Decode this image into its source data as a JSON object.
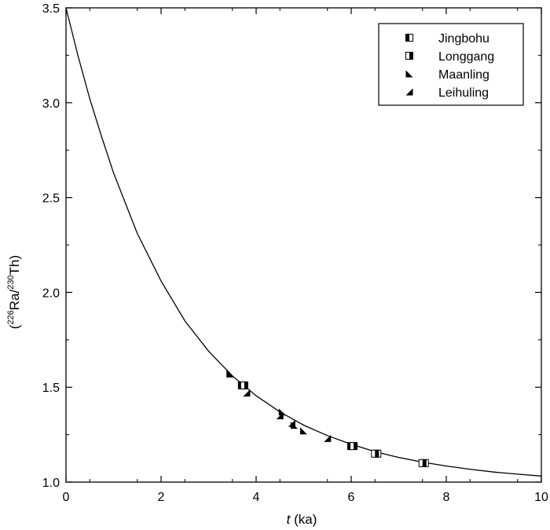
{
  "chart_data": {
    "type": "scatter",
    "xlabel_italic": "t",
    "xlabel_rest": " (ka)",
    "ylabel_parts": {
      "open": "(",
      "sup1": "226",
      "mid": "Ra/",
      "sup2": "230",
      "end": "Th)"
    },
    "xlim": [
      0,
      10
    ],
    "ylim": [
      1.0,
      3.5
    ],
    "xticks": [
      "0",
      "2",
      "4",
      "6",
      "8",
      "10"
    ],
    "xtick_values": [
      0,
      2,
      4,
      6,
      8,
      10
    ],
    "yticks": [
      "1.0",
      "1.5",
      "2.0",
      "2.5",
      "3.0",
      "3.5"
    ],
    "ytick_values": [
      1.0,
      1.5,
      2.0,
      2.5,
      3.0,
      3.5
    ],
    "grid": false,
    "legend_position": "top-right",
    "curve": {
      "x": [
        0,
        0.25,
        0.5,
        0.75,
        1.0,
        1.5,
        2.0,
        2.5,
        3.0,
        3.5,
        4.0,
        4.5,
        5.0,
        5.5,
        6.0,
        6.5,
        7.0,
        7.5,
        8.0,
        8.5,
        9.0,
        9.5,
        10.0
      ],
      "y": [
        3.5,
        3.25,
        3.02,
        2.82,
        2.63,
        2.31,
        2.06,
        1.85,
        1.69,
        1.56,
        1.455,
        1.37,
        1.3,
        1.245,
        1.2,
        1.16,
        1.13,
        1.105,
        1.085,
        1.068,
        1.053,
        1.042,
        1.032
      ]
    },
    "series": [
      {
        "name": "Jingbohu",
        "marker": "square-left-filled",
        "x": [
          3.7,
          6.0,
          6.55,
          7.55
        ],
        "y": [
          1.51,
          1.19,
          1.15,
          1.1
        ]
      },
      {
        "name": "Longgang",
        "marker": "square-right-filled",
        "x": [
          3.75,
          6.05,
          6.5,
          7.5
        ],
        "y": [
          1.51,
          1.19,
          1.15,
          1.1
        ]
      },
      {
        "name": "Maanling",
        "marker": "triangle-lower-left",
        "x": [
          3.45,
          4.55,
          4.8,
          5.0
        ],
        "y": [
          1.57,
          1.37,
          1.3,
          1.27
        ]
      },
      {
        "name": "Leihuling",
        "marker": "triangle-lower-right",
        "x": [
          3.8,
          4.5,
          4.75,
          5.5
        ],
        "y": [
          1.47,
          1.35,
          1.31,
          1.23
        ]
      }
    ]
  }
}
